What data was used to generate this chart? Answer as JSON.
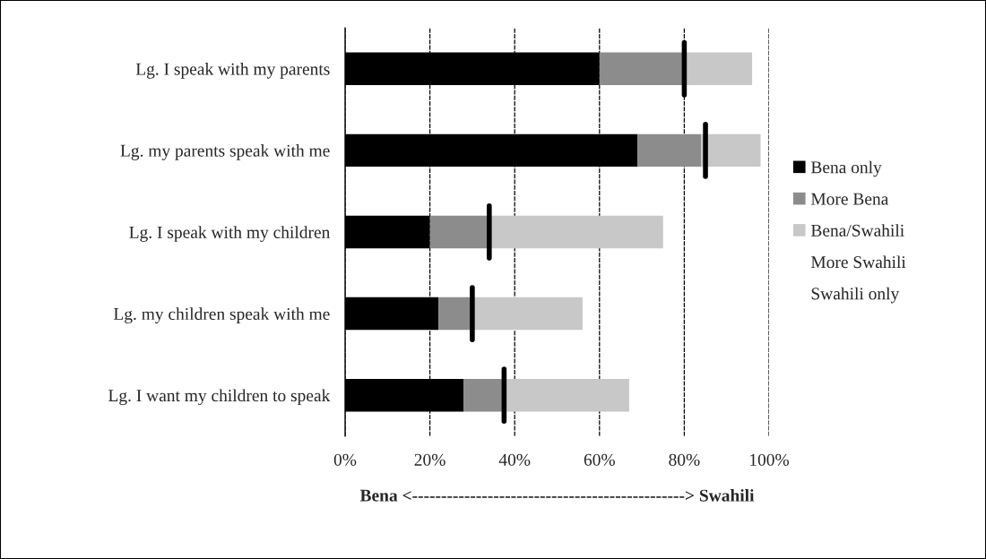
{
  "chart_data": {
    "type": "bar",
    "orientation": "horizontal",
    "stacked": true,
    "xlabel": "Bena <-----------------------------------------------> Swahili",
    "categories": [
      "Lg. I speak with my parents",
      "Lg. my parents speak with me",
      "Lg. I speak with my children",
      "Lg. my children speak with me",
      "Lg. I want my children to speak"
    ],
    "series": [
      {
        "name": "Bena only",
        "color": "#000000",
        "values": [
          60,
          69,
          20,
          22,
          28
        ]
      },
      {
        "name": "More Bena",
        "color": "#8c8c8c",
        "values": [
          20,
          15,
          14,
          8,
          9
        ]
      },
      {
        "name": "Bena/Swahili",
        "color": "#c8c8c8",
        "values": [
          16,
          14,
          41,
          26,
          30
        ]
      },
      {
        "name": "More Swahili",
        "values": [
          null,
          null,
          null,
          null,
          null
        ]
      },
      {
        "name": "Swahili only",
        "values": [
          null,
          null,
          null,
          null,
          null
        ]
      }
    ],
    "ref_lines": [
      {
        "axis": "x",
        "value": 80,
        "color": "#000000"
      },
      {
        "axis": "x",
        "value": 85,
        "color": "#000000"
      },
      {
        "axis": "x",
        "value": 34,
        "color": "#000000"
      },
      {
        "axis": "x",
        "value": 30,
        "color": "#000000"
      },
      {
        "axis": "x",
        "value": 37.5,
        "color": "#000000"
      }
    ],
    "xlim": [
      0,
      100
    ],
    "xticks": [
      {
        "value": 0,
        "label": "0%"
      },
      {
        "value": 20,
        "label": "20%"
      },
      {
        "value": 40,
        "label": "40%"
      },
      {
        "value": 60,
        "label": "60%"
      },
      {
        "value": 80,
        "label": "80%"
      },
      {
        "value": 100,
        "label": "100%"
      }
    ],
    "grid": "x",
    "legend": "right"
  }
}
